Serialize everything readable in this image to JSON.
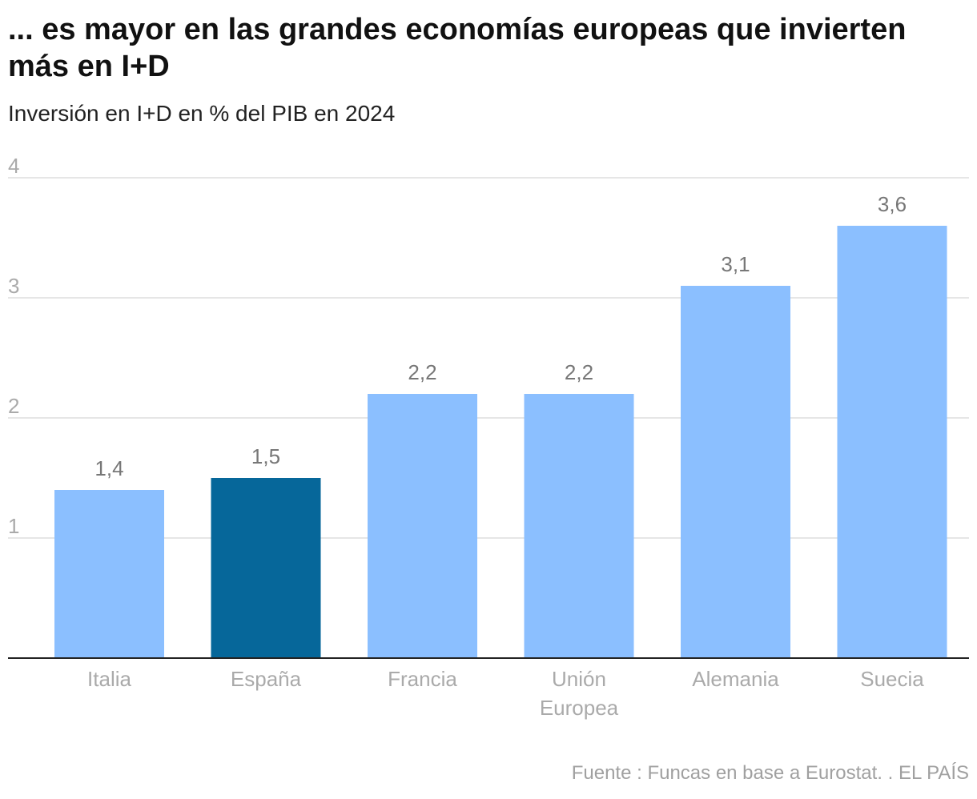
{
  "chart_data": {
    "type": "bar",
    "title": "... es mayor en las grandes economías europeas que invierten más en I+D",
    "subtitle": "Inversión en I+D en % del PIB en 2024",
    "categories": [
      "Italia",
      "España",
      "Francia",
      "Unión Europea",
      "Alemania",
      "Suecia"
    ],
    "values": [
      1.4,
      1.5,
      2.2,
      2.2,
      3.1,
      3.6
    ],
    "data_labels": [
      "1,4",
      "1,5",
      "2,2",
      "2,2",
      "3,1",
      "3,6"
    ],
    "highlight": "España",
    "colors": {
      "default": "#8bbfff",
      "highlight": "#06679a"
    },
    "ylim": [
      0,
      4
    ],
    "yticks": [
      1,
      2,
      3,
      4
    ],
    "grid": true,
    "xlabel": "",
    "ylabel": "",
    "source": "Fuente : Funcas en base a Eurostat. . EL PAÍS"
  }
}
